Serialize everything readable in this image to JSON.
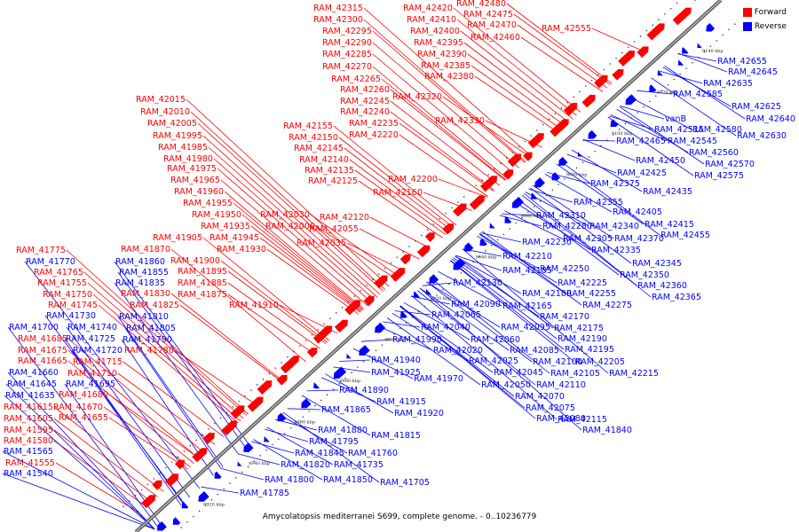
{
  "caption": "Amycolatopsis mediterranei S699, complete genome. - 0..10236779",
  "legend": [
    {
      "label": "Forward",
      "color": "#ff0000"
    },
    {
      "label": "Reverse",
      "color": "#0000ff"
    }
  ],
  "colors": {
    "forward": "#ff0000",
    "reverse": "#0000ff",
    "backbone": "#888888"
  },
  "axis_ticks": [
    "8920 kbp",
    "8940 kbp",
    "8960 kbp",
    "8980 kbp",
    "9000 kbp",
    "9020 kbp",
    "9040 kbp",
    "9060 kbp",
    "9080 kbp",
    "9100 kbp",
    "9120 kbp",
    "9140 kbp"
  ],
  "forward_labels": [
    "RAM_42315",
    "RAM_42300",
    "RAM_42295",
    "RAM_42290",
    "RAM_42285",
    "RAM_42270",
    "RAM_42265",
    "RAM_42260",
    "RAM_42245",
    "RAM_42240",
    "RAM_42235",
    "RAM_42220",
    "RAM_42420",
    "RAM_42410",
    "RAM_42400",
    "RAM_42395",
    "RAM_42390",
    "RAM_42385",
    "RAM_42380",
    "RAM_42480",
    "RAM_42475",
    "RAM_42470",
    "RAM_42460",
    "RAM_42555",
    "RAM_42320",
    "RAM_42330",
    "RAM_42015",
    "RAM_42010",
    "RAM_42005",
    "RAM_41995",
    "RAM_41985",
    "RAM_41980",
    "RAM_41975",
    "RAM_41965",
    "RAM_41960",
    "RAM_41955",
    "RAM_41950",
    "RAM_41935",
    "RAM_41945",
    "RAM_41930",
    "RAM_42155",
    "RAM_42150",
    "RAM_42145",
    "RAM_42140",
    "RAM_42135",
    "RAM_42125",
    "RAM_42200",
    "RAM_42160",
    "RAM_42030",
    "RAM_42000",
    "RAM_42120",
    "RAM_42055",
    "RAM_42035",
    "RAM_41905",
    "RAM_41775",
    "RAM_41765",
    "RAM_41755",
    "RAM_41870",
    "RAM_41900",
    "RAM_41895",
    "RAM_41885",
    "RAM_41875",
    "RAM_41750",
    "RAM_41745",
    "RAM_41830",
    "RAM_41825",
    "RAM_41910",
    "RAM_41685",
    "RAM_41675",
    "RAM_41665",
    "RAM_41715",
    "RAM_41780",
    "RAM_41710",
    "RAM_41680",
    "RAM_41670",
    "RAM_41655",
    "RAM_41615",
    "RAM_41605",
    "RAM_41595",
    "RAM_41580",
    "RAM_41555"
  ],
  "reverse_labels": [
    "RAM_41770",
    "RAM_41860",
    "RAM_41855",
    "RAM_41835",
    "RAM_41810",
    "RAM_41730",
    "RAM_41700",
    "RAM_41740",
    "RAM_41805",
    "RAM_41725",
    "RAM_41790",
    "RAM_41720",
    "RAM_41660",
    "RAM_41695",
    "RAM_41645",
    "RAM_41635",
    "RAM_41565",
    "RAM_41540",
    "RAM_42655",
    "RAM_42645",
    "RAM_42635",
    "RAM_42585",
    "RAM_42625",
    "RAM_42640",
    "RAM_42630",
    "vanB",
    "RAM_42515",
    "RAM_42580",
    "RAM_42465",
    "RAM_42545",
    "RAM_42560",
    "RAM_42570",
    "RAM_42575",
    "RAM_42450",
    "RAM_42425",
    "RAM_42375",
    "RAM_42435",
    "RAM_42355",
    "RAM_42310",
    "RAM_42405",
    "RAM_42280",
    "RAM_42340",
    "RAM_42415",
    "RAM_42455",
    "RAM_42305",
    "RAM_42370",
    "RAM_42230",
    "RAM_42335",
    "RAM_42210",
    "RAM_42345",
    "RAM_42250",
    "RAM_42185",
    "RAM_42350",
    "RAM_42130",
    "RAM_42225",
    "RAM_42180",
    "RAM_42360",
    "RAM_42255",
    "RAM_42090",
    "RAM_42165",
    "RAM_42365",
    "RAM_42275",
    "RAM_42065",
    "RAM_42170",
    "RAM_42040",
    "RAM_42095",
    "RAM_42175",
    "RAM_41990",
    "RAM_42060",
    "RAM_42190",
    "RAM_42020",
    "RAM_42085",
    "RAM_42195",
    "RAM_41940",
    "RAM_42025",
    "RAM_42100",
    "RAM_42205",
    "RAM_41925",
    "RAM_41970",
    "RAM_42045",
    "RAM_42105",
    "RAM_42215",
    "RAM_42050",
    "RAM_42110",
    "RAM_41890",
    "RAM_42070",
    "RAM_41915",
    "RAM_41865",
    "RAM_41920",
    "RAM_42075",
    "RAM_42080",
    "RAM_42115",
    "RAM_41840",
    "RAM_41880",
    "RAM_41815",
    "RAM_41795",
    "RAM_41845",
    "RAM_41760",
    "RAM_41820",
    "RAM_41735",
    "RAM_41800",
    "RAM_41850",
    "RAM_41705",
    "RAM_41785"
  ]
}
